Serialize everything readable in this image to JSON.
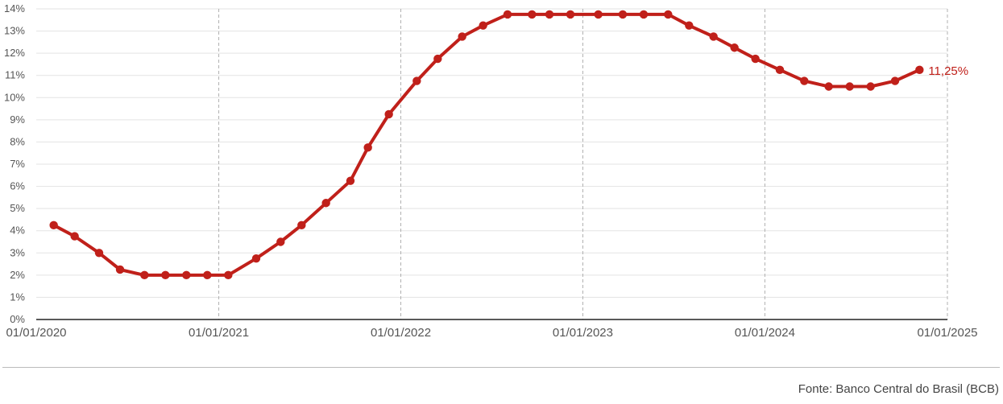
{
  "chart_data": {
    "type": "line",
    "title": "",
    "xlabel": "",
    "ylabel": "",
    "x_type": "date",
    "x_ticks": [
      "01/01/2020",
      "01/01/2021",
      "01/01/2022",
      "01/01/2023",
      "01/01/2024",
      "01/01/2025"
    ],
    "xlim": [
      "2020-01-01",
      "2025-01-01"
    ],
    "ylim": [
      0,
      14
    ],
    "y_unit": "%",
    "y_ticks": [
      "0%",
      "1%",
      "2%",
      "3%",
      "4%",
      "5%",
      "6%",
      "7%",
      "8%",
      "9%",
      "10%",
      "11%",
      "12%",
      "13%",
      "14%"
    ],
    "grid": {
      "horizontal": true,
      "vertical_dashed": true
    },
    "legend": "none",
    "series": [
      {
        "color": "#c0201a",
        "points": [
          {
            "x": "2020-02-05",
            "y": 4.25
          },
          {
            "x": "2020-03-18",
            "y": 3.75
          },
          {
            "x": "2020-05-06",
            "y": 3.0
          },
          {
            "x": "2020-06-17",
            "y": 2.25
          },
          {
            "x": "2020-08-05",
            "y": 2.0
          },
          {
            "x": "2020-09-16",
            "y": 2.0
          },
          {
            "x": "2020-10-28",
            "y": 2.0
          },
          {
            "x": "2020-12-09",
            "y": 2.0
          },
          {
            "x": "2021-01-20",
            "y": 2.0
          },
          {
            "x": "2021-03-17",
            "y": 2.75
          },
          {
            "x": "2021-05-05",
            "y": 3.5
          },
          {
            "x": "2021-06-16",
            "y": 4.25
          },
          {
            "x": "2021-08-04",
            "y": 5.25
          },
          {
            "x": "2021-09-22",
            "y": 6.25
          },
          {
            "x": "2021-10-27",
            "y": 7.75
          },
          {
            "x": "2021-12-08",
            "y": 9.25
          },
          {
            "x": "2022-02-02",
            "y": 10.75
          },
          {
            "x": "2022-03-16",
            "y": 11.75
          },
          {
            "x": "2022-05-04",
            "y": 12.75
          },
          {
            "x": "2022-06-15",
            "y": 13.25
          },
          {
            "x": "2022-08-03",
            "y": 13.75
          },
          {
            "x": "2022-09-21",
            "y": 13.75
          },
          {
            "x": "2022-10-26",
            "y": 13.75
          },
          {
            "x": "2022-12-07",
            "y": 13.75
          },
          {
            "x": "2023-02-01",
            "y": 13.75
          },
          {
            "x": "2023-03-22",
            "y": 13.75
          },
          {
            "x": "2023-05-03",
            "y": 13.75
          },
          {
            "x": "2023-06-21",
            "y": 13.75
          },
          {
            "x": "2023-08-02",
            "y": 13.25
          },
          {
            "x": "2023-09-20",
            "y": 12.75
          },
          {
            "x": "2023-11-01",
            "y": 12.25
          },
          {
            "x": "2023-12-13",
            "y": 11.75
          },
          {
            "x": "2024-01-31",
            "y": 11.25
          },
          {
            "x": "2024-03-20",
            "y": 10.75
          },
          {
            "x": "2024-05-08",
            "y": 10.5
          },
          {
            "x": "2024-06-19",
            "y": 10.5
          },
          {
            "x": "2024-07-31",
            "y": 10.5
          },
          {
            "x": "2024-09-18",
            "y": 10.75
          },
          {
            "x": "2024-11-06",
            "y": 11.25
          }
        ]
      }
    ],
    "annotations": [
      {
        "text": "11,25%",
        "x": "2024-11-06",
        "y": 11.25
      }
    ]
  },
  "source": "Fonte: Banco Central do Brasil (BCB)"
}
